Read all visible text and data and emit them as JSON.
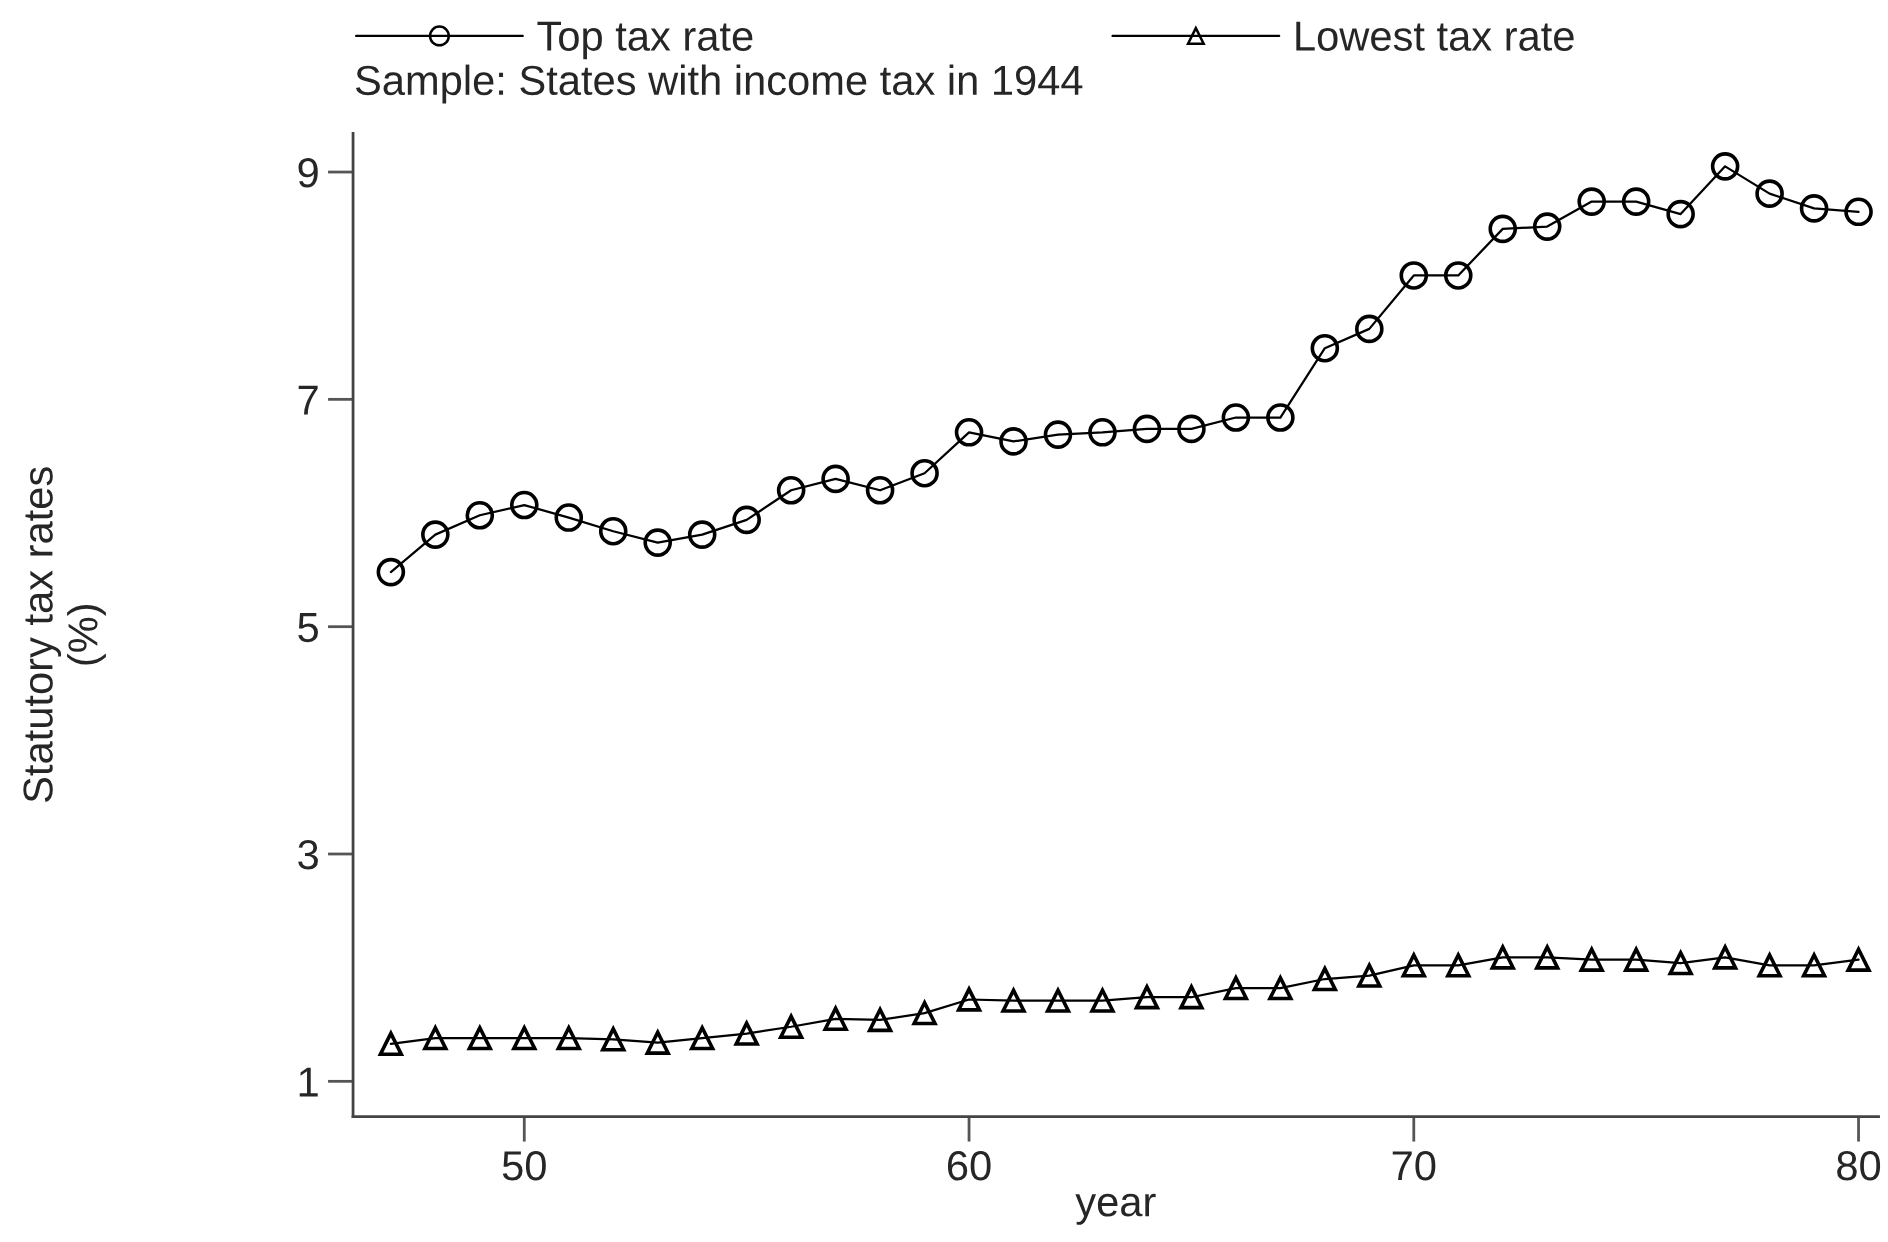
{
  "chart_data": {
    "type": "line",
    "subtitle": "Sample: States with income tax in 1944",
    "xlabel": "year",
    "ylabel": "Statutory tax rates\n(%)",
    "x": [
      47,
      48,
      49,
      50,
      51,
      52,
      53,
      54,
      55,
      56,
      57,
      58,
      59,
      60,
      61,
      62,
      63,
      64,
      65,
      66,
      67,
      68,
      69,
      70,
      71,
      72,
      73,
      74,
      75,
      76,
      77,
      78,
      79,
      80
    ],
    "series": [
      {
        "name": "Top tax rate",
        "color": "#000000",
        "marker": "circle",
        "values": [
          5.48,
          5.81,
          5.98,
          6.07,
          5.96,
          5.84,
          5.74,
          5.81,
          5.94,
          6.2,
          6.3,
          6.2,
          6.35,
          6.71,
          6.63,
          6.69,
          6.71,
          6.74,
          6.74,
          6.84,
          6.84,
          7.45,
          7.62,
          8.09,
          8.09,
          8.5,
          8.52,
          8.74,
          8.74,
          8.63,
          9.05,
          8.81,
          8.68,
          8.65
        ]
      },
      {
        "name": "Lowest tax rate",
        "color": "#000000",
        "marker": "triangle",
        "values": [
          1.33,
          1.38,
          1.38,
          1.38,
          1.38,
          1.37,
          1.34,
          1.38,
          1.42,
          1.48,
          1.55,
          1.54,
          1.6,
          1.72,
          1.71,
          1.71,
          1.71,
          1.74,
          1.74,
          1.82,
          1.82,
          1.9,
          1.93,
          2.02,
          2.02,
          2.09,
          2.09,
          2.07,
          2.07,
          2.04,
          2.09,
          2.02,
          2.02,
          2.07
        ]
      }
    ],
    "xlim": [
      46.15,
      80.45
    ],
    "ylim": [
      0.69,
      9.34
    ],
    "xticks": [
      50,
      60,
      70,
      80
    ],
    "yticks": [
      1,
      3,
      5,
      7,
      9
    ],
    "grid": false,
    "legend": "top"
  }
}
